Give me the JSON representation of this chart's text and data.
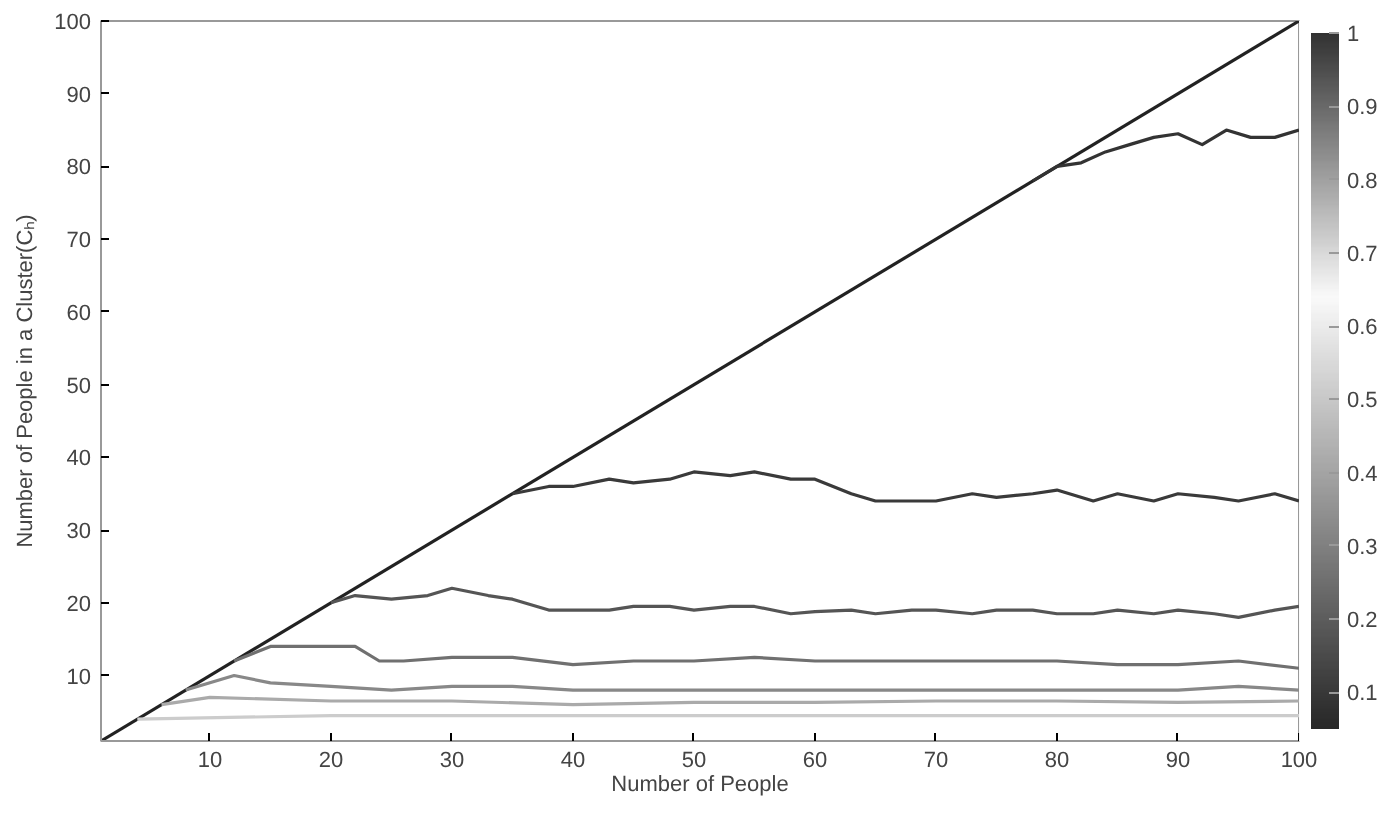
{
  "chart_data": {
    "type": "line",
    "xlabel": "Number of People",
    "ylabel": "Number of People in a Cluster(Cₕ)",
    "xlim": [
      1,
      100
    ],
    "ylim": [
      1,
      100
    ],
    "xticks": [
      10,
      20,
      30,
      40,
      50,
      60,
      70,
      80,
      90,
      100
    ],
    "yticks": [
      10,
      20,
      30,
      40,
      50,
      60,
      70,
      80,
      90,
      100
    ],
    "grid": false,
    "marker": "none",
    "line_style": "solid",
    "clim": [
      0.05,
      1
    ],
    "cticks": [
      0.1,
      0.2,
      0.3,
      0.4,
      0.5,
      0.6,
      0.7,
      0.8,
      0.9,
      1
    ],
    "series": [
      {
        "color": "#222222",
        "x": [
          1,
          100
        ],
        "values": [
          1,
          100
        ]
      },
      {
        "color": "#333333",
        "x": [
          78,
          80,
          82,
          84,
          86,
          88,
          90,
          92,
          94,
          96,
          98,
          100
        ],
        "values": [
          78,
          80,
          80.5,
          82,
          83,
          84,
          84.5,
          83,
          85,
          84,
          84,
          85
        ]
      },
      {
        "color": "#3a3a3a",
        "x": [
          35,
          38,
          40,
          43,
          45,
          48,
          50,
          53,
          55,
          58,
          60,
          63,
          65,
          68,
          70,
          73,
          75,
          78,
          80,
          83,
          85,
          88,
          90,
          93,
          95,
          98,
          100
        ],
        "values": [
          35,
          36,
          36,
          37,
          36.5,
          37,
          38,
          37.5,
          38,
          37,
          37,
          35,
          34,
          34,
          34,
          35,
          34.5,
          35,
          35.5,
          34,
          35,
          34,
          35,
          34.5,
          34,
          35,
          34
        ]
      },
      {
        "color": "#555555",
        "x": [
          20,
          22,
          25,
          28,
          30,
          33,
          35,
          38,
          40,
          43,
          45,
          48,
          50,
          53,
          55,
          58,
          60,
          63,
          65,
          68,
          70,
          73,
          75,
          78,
          80,
          83,
          85,
          88,
          90,
          93,
          95,
          98,
          100
        ],
        "values": [
          20,
          21,
          20.5,
          21,
          22,
          21,
          20.5,
          19,
          19,
          19,
          19.5,
          19.5,
          19,
          19.5,
          19.5,
          18.5,
          18.8,
          19,
          18.5,
          19,
          19,
          18.5,
          19,
          19,
          18.5,
          18.5,
          19,
          18.5,
          19,
          18.5,
          18,
          19,
          19.5
        ]
      },
      {
        "color": "#707070",
        "x": [
          12,
          15,
          20,
          22,
          24,
          26,
          30,
          35,
          40,
          45,
          50,
          55,
          60,
          65,
          70,
          75,
          80,
          85,
          90,
          95,
          100
        ],
        "values": [
          12,
          14,
          14,
          14,
          12,
          12,
          12.5,
          12.5,
          11.5,
          12,
          12,
          12.5,
          12,
          12,
          12,
          12,
          12,
          11.5,
          11.5,
          12,
          11
        ]
      },
      {
        "color": "#888888",
        "x": [
          8,
          10,
          12,
          15,
          20,
          25,
          30,
          35,
          40,
          45,
          50,
          55,
          60,
          70,
          80,
          90,
          95,
          100
        ],
        "values": [
          8,
          9,
          10,
          9,
          8.5,
          8,
          8.5,
          8.5,
          8,
          8,
          8,
          8,
          8,
          8,
          8,
          8,
          8.5,
          8
        ]
      },
      {
        "color": "#aaaaaa",
        "x": [
          6,
          10,
          20,
          30,
          40,
          50,
          60,
          70,
          80,
          90,
          100
        ],
        "values": [
          6,
          7,
          6.5,
          6.5,
          6,
          6.3,
          6.3,
          6.5,
          6.5,
          6.3,
          6.5
        ]
      },
      {
        "color": "#cccccc",
        "x": [
          4,
          20,
          40,
          60,
          80,
          100
        ],
        "values": [
          4,
          4.5,
          4.5,
          4.5,
          4.5,
          4.5
        ]
      }
    ]
  }
}
